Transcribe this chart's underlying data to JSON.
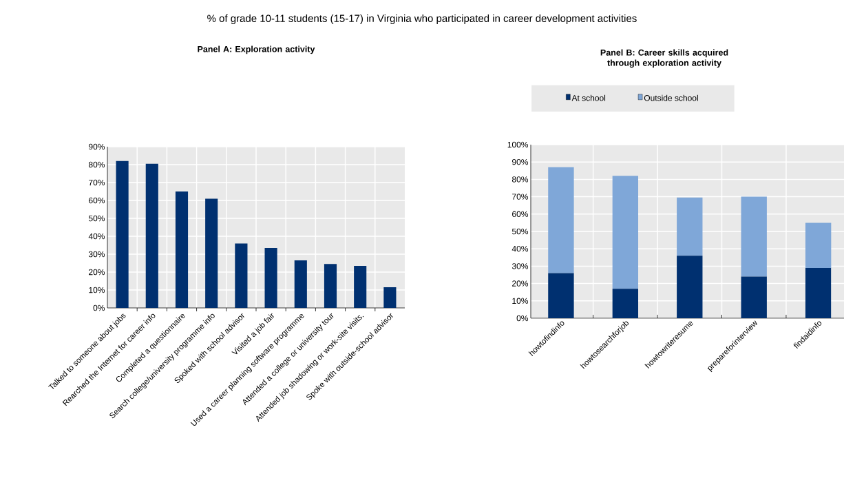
{
  "chart_data": [
    {
      "type": "bar",
      "title": "% of grade 10-11 students (15-17) in Virginia who participated in career development activities",
      "subtitle": "Panel A: Exploration activity",
      "categories": [
        "Talked to someone about jobs",
        "Rearched the Internet for career info",
        "Completed a questionnaire",
        "Search college/university programme info",
        "Spoked with school advisor",
        "Visited a job fair",
        "Used a career planning software programme",
        "Attended a college or university tour",
        "Attended job shadowing or work-site visits.",
        "Spoke with outside-school advisor"
      ],
      "values": [
        82,
        80.5,
        65,
        61,
        36,
        33.5,
        26.5,
        24.5,
        23.5,
        11.5
      ],
      "color": "#003070",
      "ylim": [
        0,
        90
      ],
      "yticks": [
        {
          "value": 0,
          "label": "0%"
        },
        {
          "value": 10,
          "label": "10%"
        },
        {
          "value": 20,
          "label": "20%"
        },
        {
          "value": 30,
          "label": "30%"
        },
        {
          "value": 40,
          "label": "40%"
        },
        {
          "value": 50,
          "label": "50%"
        },
        {
          "value": 60,
          "label": "60%"
        },
        {
          "value": 70,
          "label": "70%"
        },
        {
          "value": 80,
          "label": "80%"
        },
        {
          "value": 90,
          "label": "90%"
        }
      ],
      "grid": true
    },
    {
      "type": "bar",
      "title": "Panel B: Career skills acquired through exploration activity",
      "stacked": true,
      "categories": [
        "howtofindinfo",
        "howtosearchforjob",
        "howtowriteresume",
        "prepareforinterview",
        "findaidinfo"
      ],
      "series": [
        {
          "name": "At school",
          "color": "#003070",
          "values": [
            26,
            17,
            36,
            24,
            29
          ]
        },
        {
          "name": "Outside school",
          "color": "#7fa7d8",
          "values": [
            61,
            65,
            33.5,
            46,
            26
          ]
        }
      ],
      "ylim": [
        0,
        100
      ],
      "yticks": [
        {
          "value": 0,
          "label": "0%"
        },
        {
          "value": 10,
          "label": "10%"
        },
        {
          "value": 20,
          "label": "20%"
        },
        {
          "value": 30,
          "label": "30%"
        },
        {
          "value": 40,
          "label": "40%"
        },
        {
          "value": 50,
          "label": "50%"
        },
        {
          "value": 60,
          "label": "60%"
        },
        {
          "value": 70,
          "label": "70%"
        },
        {
          "value": 80,
          "label": "80%"
        },
        {
          "value": 90,
          "label": "90%"
        },
        {
          "value": 100,
          "label": "100%"
        }
      ],
      "grid": true,
      "legend": "top"
    }
  ]
}
